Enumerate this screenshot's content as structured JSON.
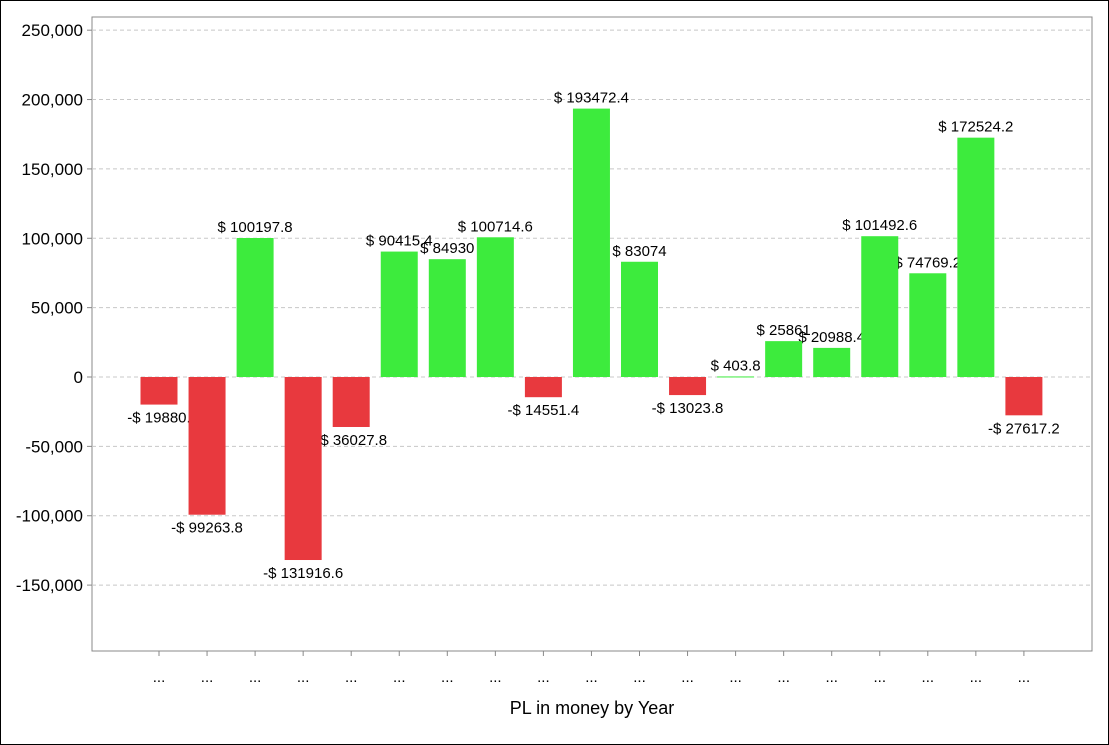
{
  "chart_data": {
    "type": "bar",
    "title": "",
    "xlabel": "PL in money by Year",
    "ylabel": "",
    "ylim": [
      -197500,
      259500
    ],
    "yticks": [
      250000,
      200000,
      150000,
      100000,
      50000,
      0,
      -50000,
      -100000,
      -150000
    ],
    "ytick_labels": [
      "250,000",
      "200,000",
      "150,000",
      "100,000",
      "50,000",
      "0",
      "-50,000",
      "-100,000",
      "-150,000"
    ],
    "grid": true,
    "categories": [
      "...",
      "...",
      "...",
      "...",
      "...",
      "...",
      "...",
      "...",
      "...",
      "...",
      "...",
      "...",
      "...",
      "...",
      "...",
      "...",
      "...",
      "...",
      "..."
    ],
    "values": [
      -19880,
      -99263.8,
      100197.8,
      -131916.6,
      -36027.8,
      90415.4,
      84930,
      100714.6,
      -14551.4,
      193472.4,
      83074,
      -13023.8,
      403.8,
      25861,
      20988.4,
      101492.6,
      74769.2,
      172524.2,
      -27617.2
    ],
    "data_labels": [
      "-$ 19880.",
      "-$ 99263.8",
      "$ 100197.8",
      "-$ 131916.6",
      "-$ 36027.8",
      "$ 90415.4",
      "$ 84930",
      "$ 100714.6",
      "-$ 14551.4",
      "$ 193472.4",
      "$ 83074",
      "-$ 13023.8",
      "$ 403.8",
      "$ 25861",
      "$ 20988.4",
      "$ 101492.6",
      "$ 74769.2",
      "$ 172524.2",
      "-$ 27617.2"
    ],
    "colors": {
      "positive": "#3deb3d",
      "negative": "#e8393e",
      "grid": "#c8c8c8",
      "frame": "#888888"
    }
  }
}
